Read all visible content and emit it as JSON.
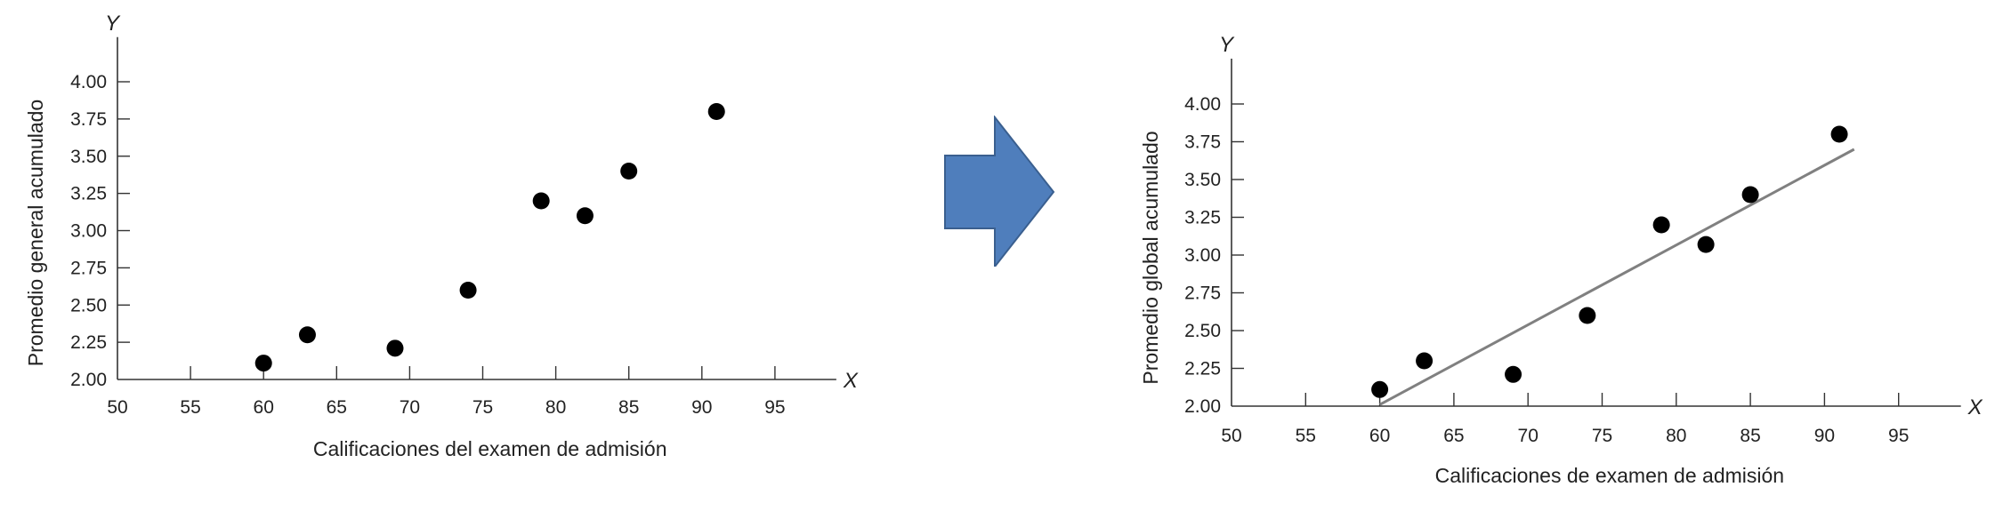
{
  "chart_data": [
    {
      "type": "scatter",
      "title": "",
      "xlabel": "Calificaciones del examen de admisión",
      "ylabel": "Promedio general acumulado",
      "x_axis_letter": "X",
      "y_axis_letter": "Y",
      "xlim": [
        50,
        100
      ],
      "ylim": [
        2.0,
        4.2
      ],
      "x_ticks": [
        "50",
        "55",
        "60",
        "65",
        "70",
        "75",
        "80",
        "85",
        "90",
        "95"
      ],
      "y_ticks": [
        "2.00",
        "2.25",
        "2.50",
        "2.75",
        "3.00",
        "3.25",
        "3.50",
        "3.75",
        "4.00"
      ],
      "grid": false,
      "legend": "none",
      "point_color": "#000000",
      "points": [
        {
          "x": 60,
          "y": 2.11
        },
        {
          "x": 63,
          "y": 2.3
        },
        {
          "x": 69,
          "y": 2.21
        },
        {
          "x": 74,
          "y": 2.6
        },
        {
          "x": 79,
          "y": 3.2
        },
        {
          "x": 82,
          "y": 3.1
        },
        {
          "x": 85,
          "y": 3.4
        },
        {
          "x": 91,
          "y": 3.8
        }
      ]
    },
    {
      "type": "scatter",
      "title": "",
      "xlabel": "Calificaciones de examen de admisión",
      "ylabel": "Promedio global acumulado",
      "x_axis_letter": "X",
      "y_axis_letter": "Y",
      "xlim": [
        50,
        100
      ],
      "ylim": [
        2.0,
        4.2
      ],
      "x_ticks": [
        "50",
        "55",
        "60",
        "65",
        "70",
        "75",
        "80",
        "85",
        "90",
        "95"
      ],
      "y_ticks": [
        "2.00",
        "2.25",
        "2.50",
        "2.75",
        "3.00",
        "3.25",
        "3.50",
        "3.75",
        "4.00"
      ],
      "grid": false,
      "legend": "none",
      "point_color": "#000000",
      "trend_line_color": "#808080",
      "trend_line": {
        "x1": 60,
        "y1": 2.01,
        "x2": 92,
        "y2": 3.7
      },
      "points": [
        {
          "x": 60,
          "y": 2.11
        },
        {
          "x": 63,
          "y": 2.3
        },
        {
          "x": 69,
          "y": 2.21
        },
        {
          "x": 74,
          "y": 2.6
        },
        {
          "x": 79,
          "y": 3.2
        },
        {
          "x": 82,
          "y": 3.07
        },
        {
          "x": 85,
          "y": 3.4
        },
        {
          "x": 91,
          "y": 3.8
        }
      ]
    }
  ],
  "arrow": {
    "icon": "right-arrow-icon",
    "fill_color": "#4f7ebc",
    "stroke_color": "#3a5f8f"
  }
}
